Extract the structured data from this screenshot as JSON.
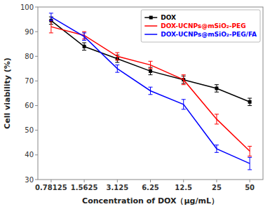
{
  "chart_data": {
    "type": "line",
    "xlabel": "Concentration of DOX（μg/mL）",
    "ylabel": "Cell viability (%)",
    "categories": [
      "0.78125",
      "1.5625",
      "3.125",
      "6.25",
      "12.5",
      "25",
      "50"
    ],
    "series": [
      {
        "name": "DOX",
        "color": "black",
        "marker": "square",
        "values": [
          94.5,
          84.0,
          79.0,
          74.0,
          70.5,
          67.0,
          61.5
        ],
        "errors": [
          1.5,
          1.5,
          1.5,
          1.5,
          1.5,
          1.5,
          1.5
        ]
      },
      {
        "name": "DOX-UCNPs@mSiO₂-PEG",
        "color": "red",
        "values": [
          92.0,
          88.5,
          80.0,
          76.5,
          70.5,
          54.5,
          41.5
        ],
        "errors": [
          2.5,
          1.5,
          1.5,
          1.5,
          2.0,
          2.0,
          2.0
        ]
      },
      {
        "name": "DOX-UCNPs@mSiO₂-PEG/FA",
        "color": "blue",
        "values": [
          96.0,
          88.0,
          75.0,
          66.0,
          60.5,
          42.5,
          36.5
        ],
        "errors": [
          1.5,
          1.5,
          1.5,
          1.5,
          2.0,
          1.5,
          2.5
        ]
      }
    ],
    "ylim": [
      30,
      100
    ],
    "yticks": [
      30,
      40,
      50,
      60,
      70,
      80,
      90,
      100
    ],
    "grid": false,
    "legend": "upper right"
  }
}
